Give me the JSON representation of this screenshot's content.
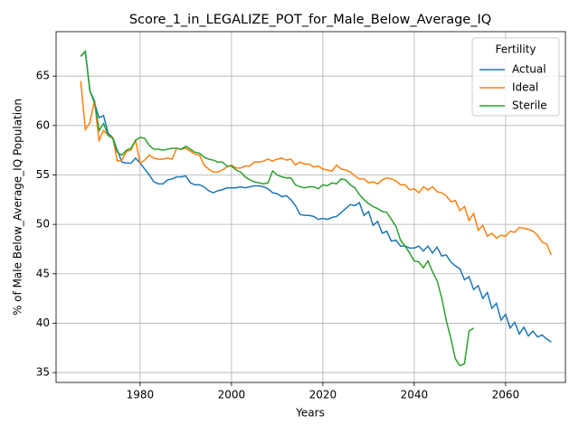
{
  "chart_data": {
    "type": "line",
    "title": "Score_1_in_LEGALIZE_POT_for_Male_Below_Average_IQ",
    "x_label": "Years",
    "y_label": "% of Male Below_Average_IQ Population",
    "legend_title": "Fertility",
    "legend_position": "upper right",
    "grid": true,
    "xlim": [
      1961.6,
      2073.1
    ],
    "ylim": [
      34.0,
      69.5
    ],
    "xticks": [
      1980,
      2000,
      2020,
      2040,
      2060
    ],
    "yticks": [
      35,
      40,
      45,
      50,
      55,
      60,
      65
    ],
    "x": [
      1967,
      1968,
      1969,
      1970,
      1971,
      1972,
      1973,
      1974,
      1975,
      1976,
      1977,
      1978,
      1979,
      1980,
      1981,
      1982,
      1983,
      1984,
      1985,
      1986,
      1987,
      1988,
      1989,
      1990,
      1991,
      1992,
      1993,
      1994,
      1995,
      1996,
      1997,
      1998,
      1999,
      2000,
      2001,
      2002,
      2003,
      2004,
      2005,
      2006,
      2007,
      2008,
      2009,
      2010,
      2011,
      2012,
      2013,
      2014,
      2015,
      2016,
      2017,
      2018,
      2019,
      2020,
      2021,
      2022,
      2023,
      2024,
      2025,
      2026,
      2027,
      2028,
      2029,
      2030,
      2031,
      2032,
      2033,
      2034,
      2035,
      2036,
      2037,
      2038,
      2039,
      2040,
      2041,
      2042,
      2043,
      2044,
      2045,
      2046,
      2047,
      2048,
      2049,
      2050,
      2051,
      2052,
      2053,
      2054,
      2055,
      2056,
      2057,
      2058,
      2059,
      2060,
      2061,
      2062,
      2063,
      2064,
      2065,
      2066,
      2067,
      2068,
      2069,
      2070
    ],
    "series": [
      {
        "name": "Actual",
        "color": "#1f77b4",
        "values": [
          67.0,
          67.5,
          63.5,
          62.3,
          60.8,
          61.0,
          59.2,
          58.8,
          57.5,
          56.3,
          56.2,
          56.2,
          56.7,
          56.2,
          55.6,
          55.0,
          54.3,
          54.1,
          54.1,
          54.5,
          54.6,
          54.8,
          54.8,
          54.9,
          54.2,
          54.0,
          54.0,
          53.8,
          53.4,
          53.2,
          53.4,
          53.5,
          53.7,
          53.7,
          53.7,
          53.8,
          53.7,
          53.8,
          53.9,
          53.9,
          53.8,
          53.6,
          53.2,
          53.1,
          52.8,
          52.9,
          52.5,
          51.9,
          51.0,
          50.9,
          50.9,
          50.8,
          50.5,
          50.6,
          50.5,
          50.7,
          50.8,
          51.2,
          51.6,
          52.0,
          51.9,
          52.2,
          50.9,
          51.3,
          49.9,
          50.3,
          49.1,
          49.3,
          48.3,
          48.4,
          47.8,
          47.8,
          47.6,
          47.6,
          47.8,
          47.3,
          47.8,
          47.1,
          47.7,
          46.8,
          46.9,
          46.2,
          45.8,
          45.5,
          44.4,
          44.7,
          43.4,
          43.8,
          42.5,
          43.1,
          41.5,
          42.0,
          40.3,
          40.9,
          39.5,
          40.1,
          38.9,
          39.6,
          38.7,
          39.2,
          38.6,
          38.8,
          38.4,
          38.1
        ]
      },
      {
        "name": "Ideal",
        "color": "#ff7f0e",
        "values": [
          64.5,
          59.6,
          60.3,
          62.5,
          58.5,
          59.5,
          59.0,
          58.8,
          56.4,
          56.5,
          57.4,
          57.5,
          58.5,
          56.2,
          56.5,
          57.0,
          56.7,
          56.6,
          56.6,
          56.7,
          56.6,
          57.7,
          57.6,
          57.7,
          57.4,
          57.1,
          57.0,
          56.0,
          55.6,
          55.3,
          55.3,
          55.5,
          55.8,
          56.0,
          55.7,
          55.7,
          55.9,
          55.9,
          56.3,
          56.3,
          56.4,
          56.6,
          56.4,
          56.6,
          56.7,
          56.5,
          56.6,
          56.0,
          56.3,
          56.1,
          56.1,
          55.8,
          55.9,
          55.6,
          55.5,
          55.4,
          56.0,
          55.6,
          55.5,
          55.3,
          54.9,
          54.6,
          54.6,
          54.2,
          54.3,
          54.1,
          54.5,
          54.7,
          54.6,
          54.4,
          54.0,
          54.0,
          53.5,
          53.6,
          53.2,
          53.8,
          53.5,
          53.8,
          53.3,
          53.2,
          52.9,
          52.3,
          52.4,
          51.4,
          51.8,
          50.4,
          51.1,
          49.4,
          49.9,
          48.8,
          49.1,
          48.6,
          48.9,
          48.8,
          49.3,
          49.2,
          49.7,
          49.6,
          49.5,
          49.3,
          48.9,
          48.2,
          48.0,
          46.9
        ]
      },
      {
        "name": "Sterile",
        "color": "#2ca02c",
        "values": [
          67.0,
          67.5,
          63.5,
          62.5,
          59.5,
          60.2,
          59.0,
          58.7,
          57.3,
          57.0,
          57.5,
          57.7,
          58.5,
          58.8,
          58.7,
          58.0,
          57.6,
          57.6,
          57.5,
          57.6,
          57.7,
          57.7,
          57.6,
          57.9,
          57.6,
          57.3,
          57.2,
          56.8,
          56.6,
          56.5,
          56.3,
          56.3,
          55.9,
          55.9,
          55.5,
          55.3,
          54.8,
          54.5,
          54.3,
          54.2,
          54.1,
          54.2,
          55.4,
          55.0,
          54.8,
          54.7,
          54.7,
          54.0,
          53.8,
          53.7,
          53.8,
          53.8,
          53.6,
          54.0,
          53.9,
          54.2,
          54.1,
          54.6,
          54.5,
          54.0,
          53.7,
          53.0,
          52.5,
          52.1,
          51.8,
          51.6,
          51.3,
          51.2,
          50.5,
          49.8,
          48.4,
          47.8,
          47.1,
          46.3,
          46.2,
          45.6,
          46.3,
          45.2,
          44.3,
          42.6,
          40.3,
          38.5,
          36.4,
          35.7,
          35.9,
          39.2,
          39.5,
          null,
          null,
          null,
          null,
          null,
          null,
          null,
          null,
          null,
          null,
          null,
          null,
          null,
          null,
          null,
          null,
          null
        ]
      }
    ]
  }
}
